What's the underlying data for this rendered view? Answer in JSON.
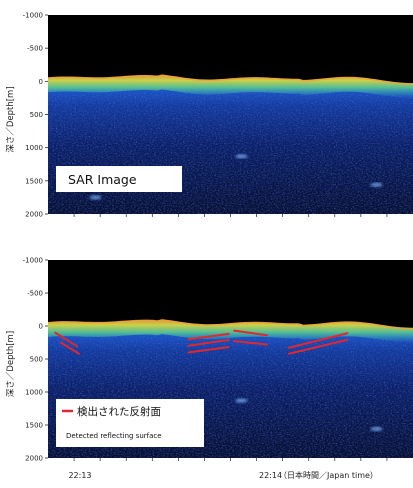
{
  "panels": [
    {
      "id": "top",
      "ylabel": "深さ／Depth[m]",
      "yticks": [
        "-1000",
        "-500",
        "0",
        "500",
        "1000",
        "1500",
        "2000"
      ],
      "label_box": "SAR Image",
      "legend": null,
      "show_lines": false
    },
    {
      "id": "bottom",
      "ylabel": "深さ／Depth[m]",
      "yticks": [
        "-1000",
        "-500",
        "0",
        "500",
        "1000",
        "1500",
        "2000"
      ],
      "label_box": null,
      "legend": {
        "label": "検出された反射面",
        "sublabel": "Detected reflecting surface",
        "color": "#e0282e"
      },
      "show_lines": true
    }
  ],
  "xaxis": {
    "tick_1": "22:13",
    "tick_2": "22:14",
    "unit_note": "（日本時間／Japan time）"
  },
  "chart_data": [
    {
      "type": "heatmap",
      "title": "SAR Image",
      "ylabel": "深さ／Depth[m]",
      "ylim": [
        -1000,
        2000
      ],
      "y_inverted": true,
      "yticks": [
        -1000,
        -500,
        0,
        500,
        1000,
        1500,
        2000
      ],
      "xticks": [
        "22:13",
        "22:14"
      ],
      "colormap": [
        "#000000",
        "#0a1a5a",
        "#1f4fcf",
        "#2fc0c0",
        "#e8e030",
        "#f08a20"
      ],
      "surface_depth_m": 0
    },
    {
      "type": "heatmap",
      "ylabel": "深さ／Depth[m]",
      "ylim": [
        -1000,
        2000
      ],
      "y_inverted": true,
      "yticks": [
        -1000,
        -500,
        0,
        500,
        1000,
        1500,
        2000
      ],
      "xticks": [
        "22:13",
        "22:14"
      ],
      "legend": {
        "label": "検出された反射面",
        "sublabel": "Detected reflecting surface",
        "color": "#e0282e"
      },
      "colormap": [
        "#000000",
        "#0a1a5a",
        "#1f4fcf",
        "#2fc0c0",
        "#e8e030",
        "#f08a20"
      ],
      "surface_depth_m": 0,
      "reflector_segments_m": [
        {
          "name": "seg1",
          "x": [
            0.02,
            0.08
          ],
          "depth": [
            100,
            310
          ]
        },
        {
          "name": "seg2",
          "x": [
            0.035,
            0.085
          ],
          "depth": [
            250,
            420
          ]
        },
        {
          "name": "seg3",
          "x": [
            0.385,
            0.495
          ],
          "depth": [
            200,
            120
          ]
        },
        {
          "name": "seg4",
          "x": [
            0.385,
            0.495
          ],
          "depth": [
            300,
            210
          ]
        },
        {
          "name": "seg5",
          "x": [
            0.385,
            0.495
          ],
          "depth": [
            400,
            320
          ]
        },
        {
          "name": "seg6",
          "x": [
            0.51,
            0.6
          ],
          "depth": [
            70,
            140
          ]
        },
        {
          "name": "seg7",
          "x": [
            0.51,
            0.6
          ],
          "depth": [
            230,
            280
          ]
        },
        {
          "name": "seg8",
          "x": [
            0.66,
            0.82
          ],
          "depth": [
            330,
            110
          ]
        },
        {
          "name": "seg9",
          "x": [
            0.66,
            0.82
          ],
          "depth": [
            420,
            210
          ]
        }
      ]
    }
  ]
}
